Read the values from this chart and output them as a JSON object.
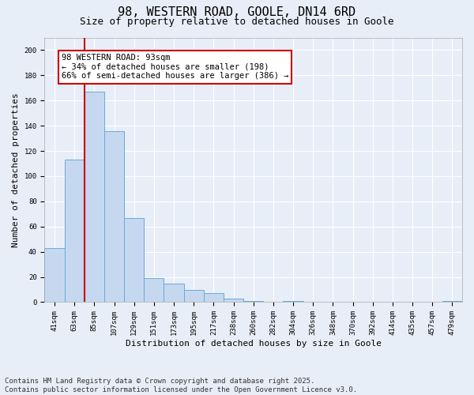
{
  "title_line1": "98, WESTERN ROAD, GOOLE, DN14 6RD",
  "title_line2": "Size of property relative to detached houses in Goole",
  "xlabel": "Distribution of detached houses by size in Goole",
  "ylabel": "Number of detached properties",
  "categories": [
    "41sqm",
    "63sqm",
    "85sqm",
    "107sqm",
    "129sqm",
    "151sqm",
    "173sqm",
    "195sqm",
    "217sqm",
    "238sqm",
    "260sqm",
    "282sqm",
    "304sqm",
    "326sqm",
    "348sqm",
    "370sqm",
    "392sqm",
    "414sqm",
    "435sqm",
    "457sqm",
    "479sqm"
  ],
  "values": [
    43,
    113,
    167,
    136,
    67,
    19,
    15,
    10,
    7,
    3,
    1,
    0,
    1,
    0,
    0,
    0,
    0,
    0,
    0,
    0,
    1
  ],
  "bar_color": "#c5d8f0",
  "bar_edge_color": "#6aaad4",
  "property_bin_index": 2,
  "annotation_line1": "98 WESTERN ROAD: 93sqm",
  "annotation_line2": "← 34% of detached houses are smaller (198)",
  "annotation_line3": "66% of semi-detached houses are larger (386) →",
  "annotation_box_facecolor": "#ffffff",
  "annotation_box_edgecolor": "#cc0000",
  "vline_color": "#cc0000",
  "ylim": [
    0,
    210
  ],
  "yticks": [
    0,
    20,
    40,
    60,
    80,
    100,
    120,
    140,
    160,
    180,
    200
  ],
  "background_color": "#e8eef8",
  "grid_color": "#ffffff",
  "footer_text": "Contains HM Land Registry data © Crown copyright and database right 2025.\nContains public sector information licensed under the Open Government Licence v3.0.",
  "title_fontsize": 11,
  "subtitle_fontsize": 9,
  "axis_label_fontsize": 8,
  "tick_fontsize": 6.5,
  "annotation_fontsize": 7.5,
  "footer_fontsize": 6.5
}
